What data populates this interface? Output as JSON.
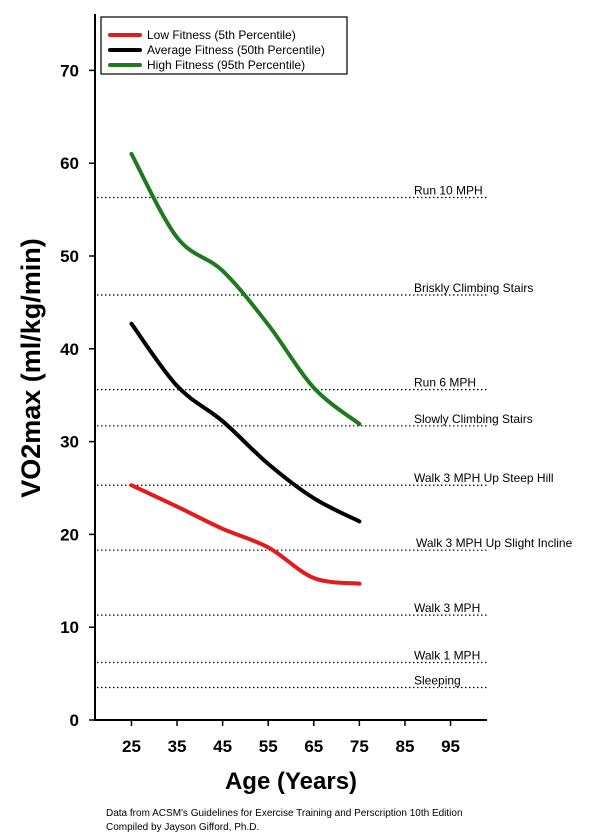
{
  "chart_data": {
    "type": "line",
    "xlabel": "Age (Years)",
    "ylabel": "VO2max (ml/kg/min)",
    "xlim": [
      17,
      103
    ],
    "ylim": [
      0,
      75
    ],
    "xticks": [
      25,
      35,
      45,
      55,
      65,
      75,
      85,
      95
    ],
    "yticks": [
      0,
      10,
      20,
      30,
      40,
      50,
      60,
      70
    ],
    "legend_position": "top-left",
    "series": [
      {
        "name": "Low Fitness (5th Percentile)",
        "color": "#e31b1b",
        "x": [
          25,
          35,
          45,
          55,
          65,
          75
        ],
        "y": [
          25.3,
          23.0,
          20.6,
          18.6,
          15.3,
          14.7
        ]
      },
      {
        "name": "Average Fitness (50th Percentile)",
        "color": "#000000",
        "x": [
          25,
          35,
          45,
          55,
          65,
          75
        ],
        "y": [
          42.7,
          36.0,
          32.2,
          27.6,
          23.9,
          21.4
        ]
      },
      {
        "name": "High Fitness (95th Percentile)",
        "color": "#1f7a1f",
        "x": [
          25,
          35,
          45,
          55,
          65,
          75
        ],
        "y": [
          61.0,
          52.0,
          48.4,
          42.6,
          35.8,
          31.9
        ]
      }
    ],
    "reference_lines": [
      {
        "y": 56.3,
        "label": "Run 10 MPH"
      },
      {
        "y": 45.8,
        "label": "Briskly Climbing Stairs"
      },
      {
        "y": 35.6,
        "label": "Run 6 MPH"
      },
      {
        "y": 31.7,
        "label": "Slowly Climbing Stairs"
      },
      {
        "y": 25.3,
        "label": "Walk 3 MPH Up Steep Hill"
      },
      {
        "y": 18.3,
        "label": "Walk 3 MPH Up Slight Incline"
      },
      {
        "y": 11.3,
        "label": "Walk 3 MPH"
      },
      {
        "y": 6.2,
        "label": "Walk 1 MPH"
      },
      {
        "y": 3.5,
        "label": "Sleeping"
      }
    ]
  },
  "footer": {
    "line1": "Data from ACSM's Guidelines for Exercise Training and Perscription 10th Edition",
    "line2": "Compiled by Jayson Gifford, Ph.D."
  }
}
